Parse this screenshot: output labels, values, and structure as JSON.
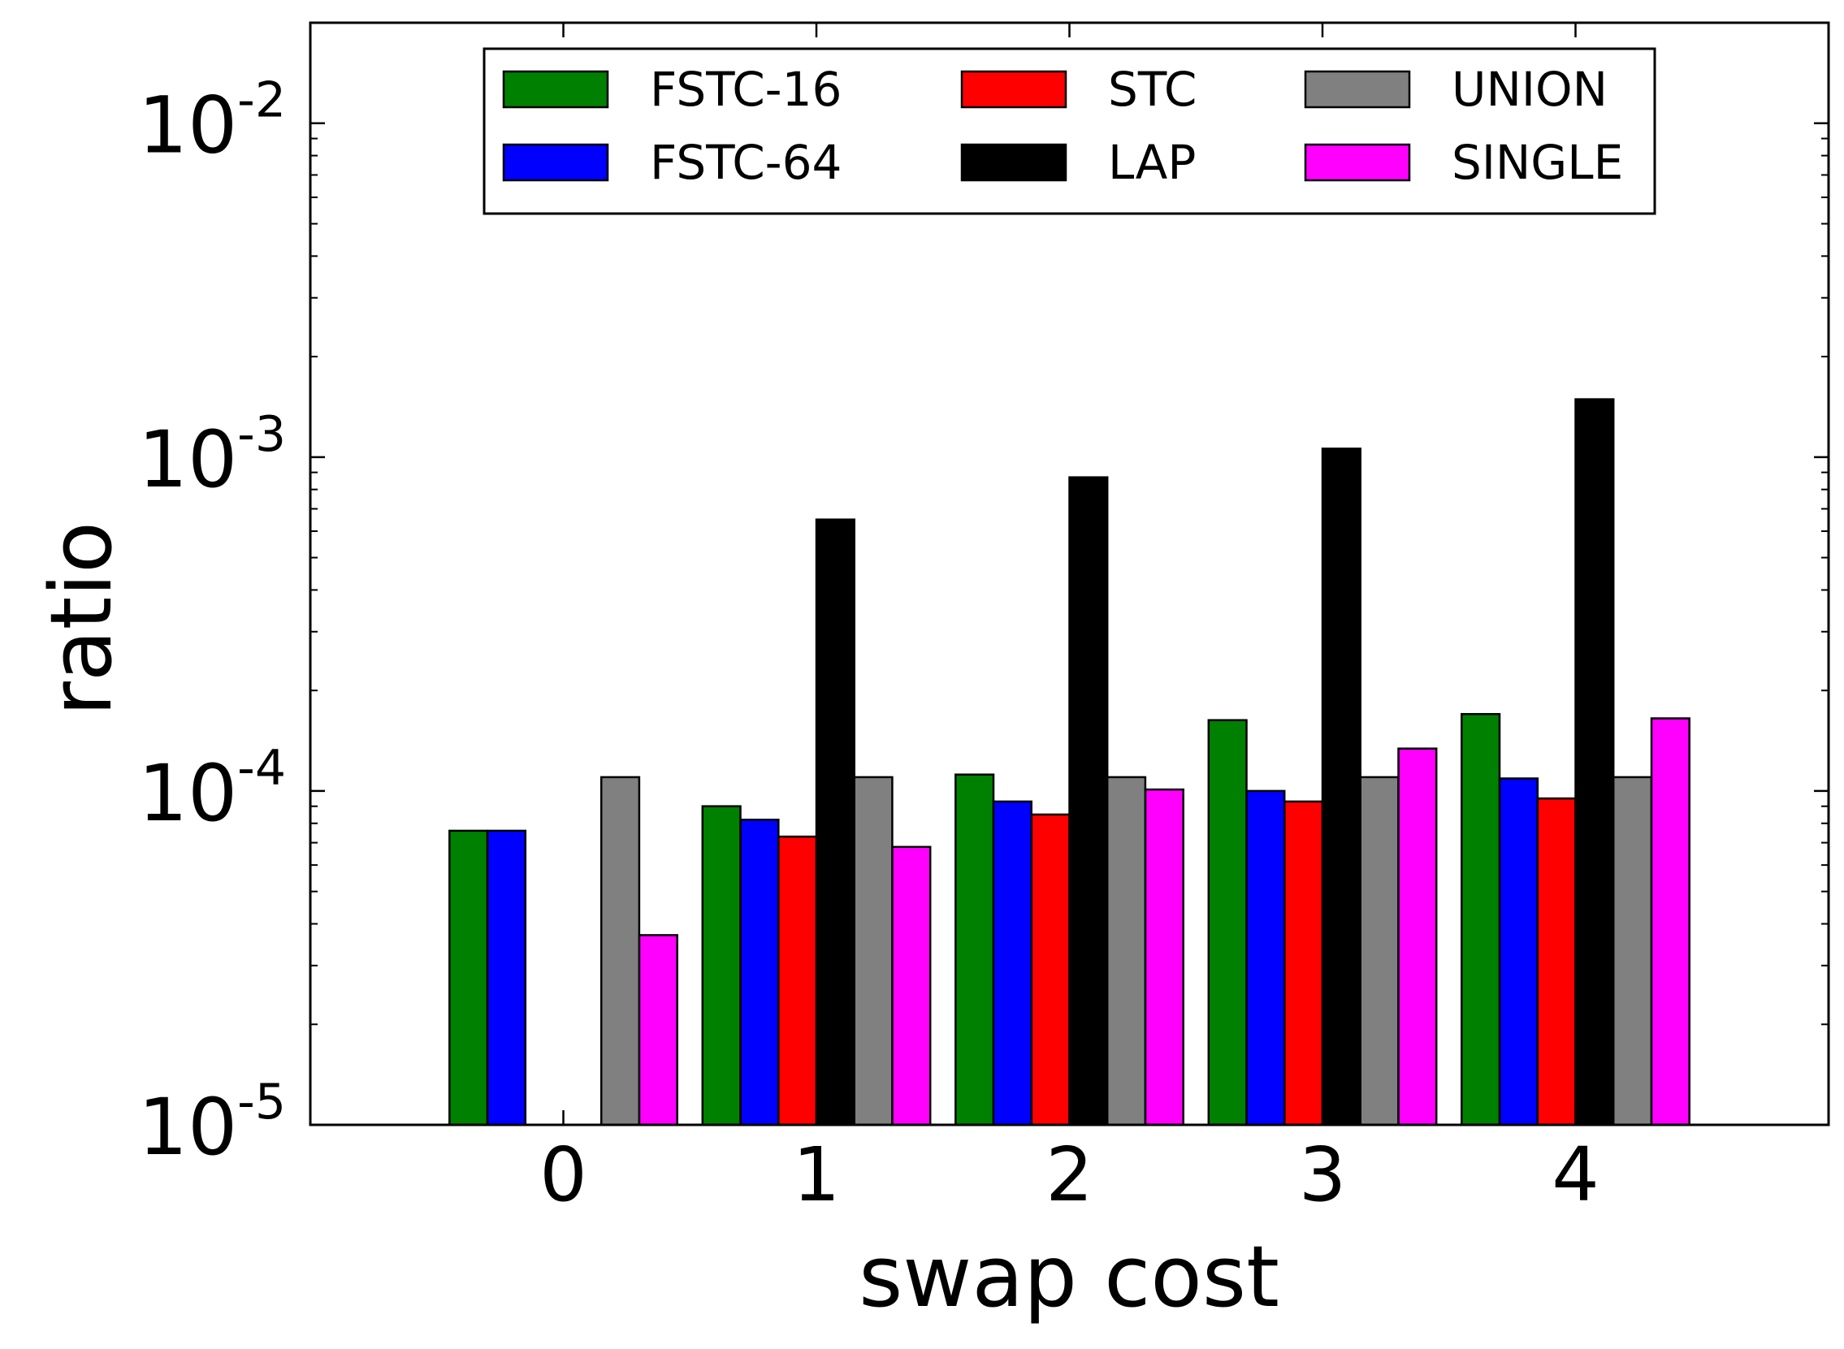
{
  "chart_data": {
    "type": "bar",
    "title": "",
    "xlabel": "swap cost",
    "ylabel": "ratio",
    "yscale": "log",
    "ylim": [
      1e-05,
      0.02
    ],
    "xlim": [
      -1,
      5
    ],
    "categories": [
      "0",
      "1",
      "2",
      "3",
      "4"
    ],
    "x_tick_labels": [
      "0",
      "1",
      "2",
      "3",
      "4"
    ],
    "y_ticks": [
      {
        "base": "10",
        "exp": "-5",
        "value": 1e-05
      },
      {
        "base": "10",
        "exp": "-4",
        "value": 0.0001
      },
      {
        "base": "10",
        "exp": "-3",
        "value": 0.001
      },
      {
        "base": "10",
        "exp": "-2",
        "value": 0.01
      }
    ],
    "legend_position": "upper-center",
    "legend_columns": 3,
    "series": [
      {
        "name": "FSTC-16",
        "color": "#008000",
        "values": [
          7.6e-05,
          9e-05,
          0.000112,
          0.000163,
          0.00017
        ]
      },
      {
        "name": "FSTC-64",
        "color": "#0000ff",
        "values": [
          7.6e-05,
          8.2e-05,
          9.3e-05,
          0.0001,
          0.000109
        ]
      },
      {
        "name": "STC",
        "color": "#ff0000",
        "values": [
          null,
          7.3e-05,
          8.5e-05,
          9.3e-05,
          9.5e-05
        ]
      },
      {
        "name": "LAP",
        "color": "#000000",
        "values": [
          null,
          0.00065,
          0.00087,
          0.00106,
          0.00149
        ]
      },
      {
        "name": "UNION",
        "color": "#808080",
        "values": [
          0.00011,
          0.00011,
          0.00011,
          0.00011,
          0.00011
        ]
      },
      {
        "name": "SINGLE",
        "color": "#ff00ff",
        "values": [
          3.7e-05,
          6.8e-05,
          0.000101,
          0.000134,
          0.000165
        ]
      }
    ]
  }
}
